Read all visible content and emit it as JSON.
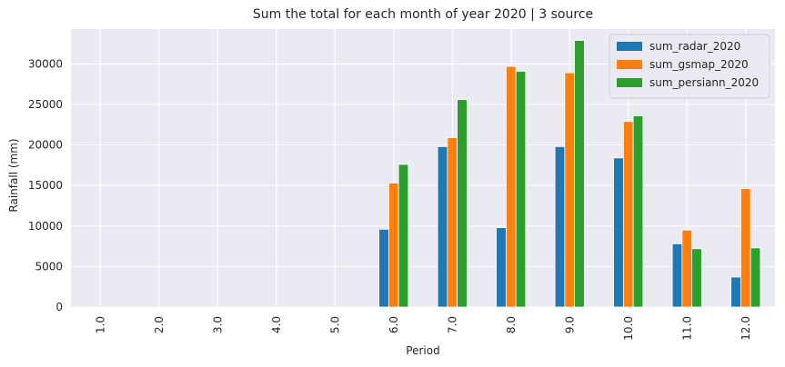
{
  "chart_data": {
    "type": "bar",
    "title": "Sum the total for each month of year 2020 | 3 source",
    "xlabel": "Period",
    "ylabel": "Rainfall (mm)",
    "categories": [
      "1.0",
      "2.0",
      "3.0",
      "4.0",
      "5.0",
      "6.0",
      "7.0",
      "8.0",
      "9.0",
      "10.0",
      "11.0",
      "12.0"
    ],
    "ylim": [
      0,
      34300
    ],
    "yticks": [
      "0",
      "5000",
      "10000",
      "15000",
      "20000",
      "25000",
      "30000"
    ],
    "grid": true,
    "legend_position": "top-right",
    "series": [
      {
        "name": "sum_radar_2020",
        "color": "#1f77b4",
        "values": [
          0,
          0,
          0,
          0,
          0,
          9600,
          19800,
          9800,
          19800,
          18400,
          7800,
          3700
        ]
      },
      {
        "name": "sum_gsmap_2020",
        "color": "#ff7f0e",
        "values": [
          0,
          0,
          0,
          0,
          0,
          15300,
          20900,
          29700,
          28900,
          22900,
          9500,
          14600
        ]
      },
      {
        "name": "sum_persiann_2020",
        "color": "#2ca02c",
        "values": [
          0,
          0,
          0,
          0,
          0,
          17600,
          25600,
          29100,
          32900,
          23600,
          7200,
          7300
        ]
      }
    ]
  }
}
